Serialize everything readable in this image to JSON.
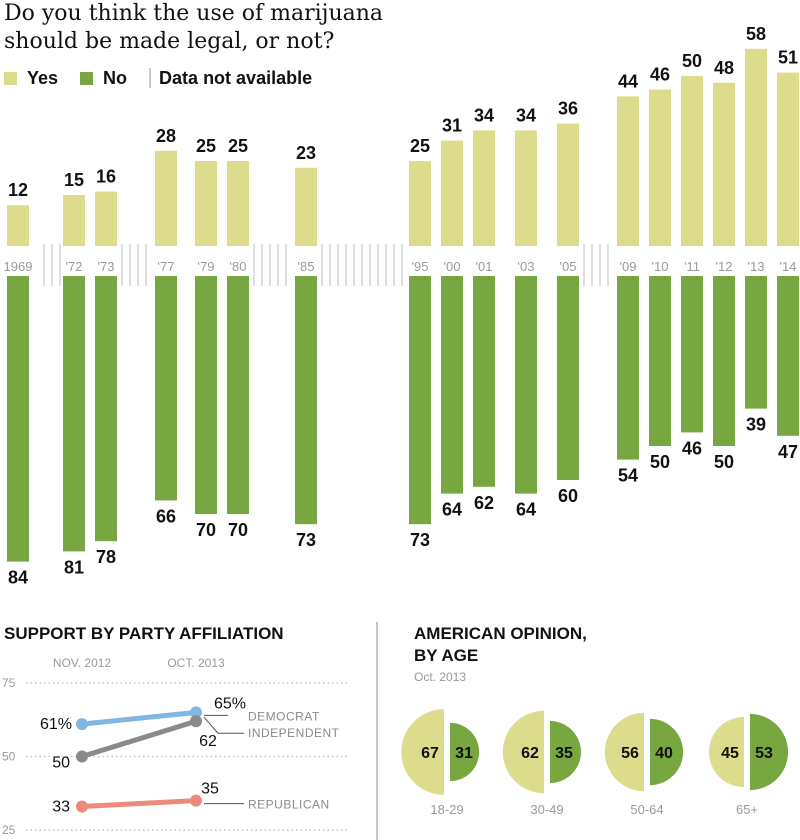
{
  "title": "Do you think the use of marijuana should be made legal, or not?",
  "legend": {
    "yes_label": "Yes",
    "no_label": "No",
    "na_label": "Data not available"
  },
  "colors": {
    "yes": "#dcdc8c",
    "no": "#78a640",
    "republican": "#ec8a7c",
    "democrat": "#7fb6e2",
    "independent": "#8a8a8a",
    "na_tick": "#c9c9c9"
  },
  "chart_data": [
    {
      "type": "bar",
      "title": "Do you think the use of marijuana should be made legal, or not?",
      "categories": [
        "1969",
        "'72",
        "'73",
        "'77",
        "'79",
        "'80",
        "'85",
        "'95",
        "'00",
        "'01",
        "'03",
        "'05",
        "'09",
        "'10",
        "'11",
        "'12",
        "'13",
        "'14"
      ],
      "series": [
        {
          "name": "Yes",
          "values": [
            12,
            15,
            16,
            28,
            25,
            25,
            23,
            25,
            31,
            34,
            34,
            36,
            44,
            46,
            50,
            48,
            58,
            51
          ]
        },
        {
          "name": "No",
          "values": [
            84,
            81,
            78,
            66,
            70,
            70,
            73,
            73,
            64,
            62,
            64,
            60,
            54,
            50,
            46,
            50,
            39,
            47
          ]
        }
      ],
      "note": "Data not available"
    },
    {
      "type": "line",
      "title": "SUPPORT BY PARTY AFFILIATION",
      "x": [
        "NOV. 2012",
        "OCT. 2013"
      ],
      "yticks": [
        75,
        50,
        25
      ],
      "ylim": [
        25,
        75
      ],
      "series": [
        {
          "name": "DEMOCRAT",
          "values": [
            61,
            65
          ],
          "labels": [
            "61%",
            "65%"
          ]
        },
        {
          "name": "INDEPENDENT",
          "values": [
            50,
            62
          ],
          "labels": [
            "50",
            "62"
          ]
        },
        {
          "name": "REPUBLICAN",
          "values": [
            33,
            35
          ],
          "labels": [
            "33",
            "35"
          ]
        }
      ]
    },
    {
      "type": "pie",
      "title": "AMERICAN OPINION, BY AGE",
      "subtitle": "Oct. 2013",
      "groups": [
        {
          "label": "18-29",
          "yes": 67,
          "no": 31
        },
        {
          "label": "30-49",
          "yes": 62,
          "no": 35
        },
        {
          "label": "50-64",
          "yes": 56,
          "no": 40
        },
        {
          "label": "65+",
          "yes": 45,
          "no": 53
        }
      ]
    }
  ],
  "party": {
    "title": "SUPPORT BY PARTY AFFILIATION"
  },
  "age": {
    "title_line1": "AMERICAN OPINION,",
    "title_line2": "BY AGE",
    "subtitle": "Oct. 2013"
  }
}
